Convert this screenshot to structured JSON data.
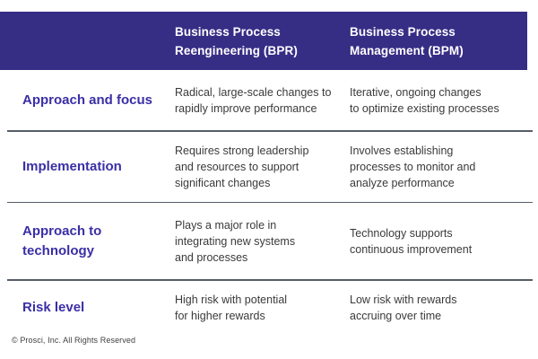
{
  "colors": {
    "header_bg": "#362e85",
    "header_text": "#ffffff",
    "label_text": "#3a2fa6",
    "cell_text": "#3a3a3a",
    "divider": "#565d68",
    "background": "#ffffff"
  },
  "table": {
    "header": {
      "col1": "",
      "bpr": "Business Process\nReengineering (BPR)",
      "bpm": "Business Process\nManagement (BPM)"
    },
    "rows": [
      {
        "label": "Approach and focus",
        "bpr": "Radical, large-scale changes to\nrapidly improve performance",
        "bpm": "Iterative, ongoing changes\nto optimize existing processes"
      },
      {
        "label": "Implementation",
        "bpr": "Requires strong leadership\nand resources to support\nsignificant changes",
        "bpm": "Involves establishing\nprocesses to monitor and\nanalyze performance"
      },
      {
        "label": "Approach to\ntechnology",
        "bpr": "Plays a major role in\nintegrating new systems\nand processes",
        "bpm": "Technology supports\ncontinuous improvement"
      },
      {
        "label": "Risk level",
        "bpr": "High risk with potential\nfor higher rewards",
        "bpm": "Low risk with rewards\naccruing over time"
      }
    ]
  },
  "footer": {
    "copyright": "© Prosci, Inc. All Rights Reserved"
  },
  "chart_data": {
    "type": "table",
    "columns": [
      "",
      "Business Process Reengineering (BPR)",
      "Business Process Management (BPM)"
    ],
    "rows": [
      [
        "Approach and focus",
        "Radical, large-scale changes to rapidly improve performance",
        "Iterative, ongoing changes to optimize existing processes"
      ],
      [
        "Implementation",
        "Requires strong leadership and resources to support significant changes",
        "Involves establishing processes to monitor and analyze performance"
      ],
      [
        "Approach to technology",
        "Plays a major role in integrating new systems and processes",
        "Technology supports continuous improvement"
      ],
      [
        "Risk level",
        "High risk with potential for higher rewards",
        "Low risk with rewards accruing over time"
      ]
    ]
  }
}
